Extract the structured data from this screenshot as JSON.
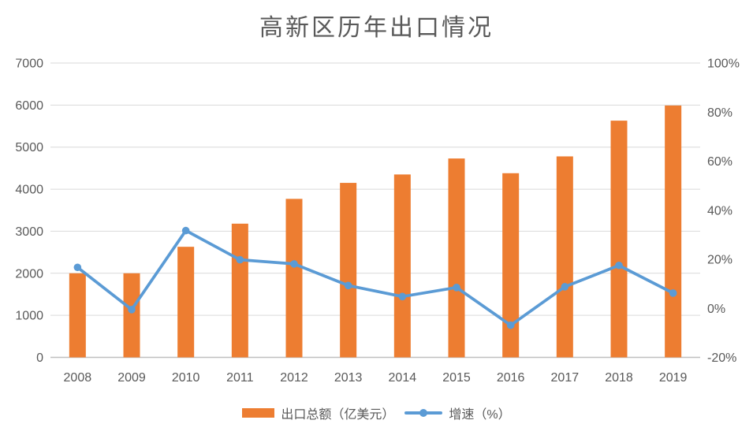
{
  "title": "高新区历年出口情况",
  "colors": {
    "bar": "#ED7D31",
    "line": "#5B9BD5",
    "grid": "#D9D9D9",
    "axis_line": "#C0C0C0",
    "text": "#595959",
    "background": "#FFFFFF"
  },
  "legend": {
    "bar_label": "出口总额（亿美元）",
    "line_label": "增速（%）"
  },
  "chart_data": {
    "type": "combo",
    "title": "高新区历年出口情况",
    "categories": [
      "2008",
      "2009",
      "2010",
      "2011",
      "2012",
      "2013",
      "2014",
      "2015",
      "2016",
      "2017",
      "2018",
      "2019"
    ],
    "series": [
      {
        "name": "出口总额（亿美元）",
        "type": "bar",
        "axis": "left",
        "values": [
          2000,
          2000,
          2630,
          3180,
          3770,
          4150,
          4350,
          4730,
          4380,
          4780,
          5630,
          5990
        ]
      },
      {
        "name": "增速（%）",
        "type": "line",
        "axis": "right",
        "values": [
          16.7,
          -0.5,
          31.7,
          19.8,
          18.1,
          9.3,
          4.8,
          8.5,
          -6.9,
          8.8,
          17.5,
          6.2
        ]
      }
    ],
    "left_axis": {
      "min": 0,
      "max": 7000,
      "step": 1000,
      "tick_labels": [
        "0",
        "1000",
        "2000",
        "3000",
        "4000",
        "5000",
        "6000",
        "7000"
      ]
    },
    "right_axis": {
      "min": -20,
      "max": 100,
      "step": 20,
      "suffix": "%",
      "tick_labels": [
        "-20%",
        "0%",
        "20%",
        "40%",
        "60%",
        "80%",
        "100%"
      ]
    },
    "grid": true,
    "legend_position": "bottom"
  }
}
